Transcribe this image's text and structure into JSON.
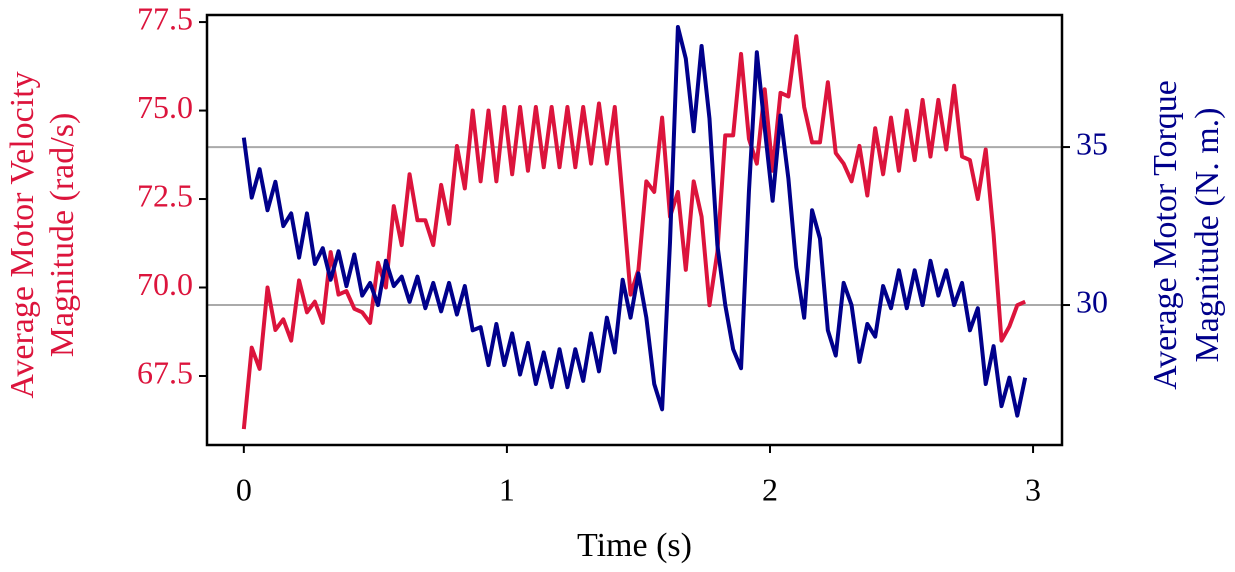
{
  "chart_data": {
    "type": "line",
    "xlabel": "Time (s)",
    "ylabel": [
      "Average Motor Velocity",
      "Magnitude (rad/s)"
    ],
    "y2label": [
      "Average Motor Torque",
      "Magnitude (N. m.)"
    ],
    "x": [
      0,
      0.03,
      0.06,
      0.09,
      0.12,
      0.15,
      0.18,
      0.21,
      0.24,
      0.27,
      0.3,
      0.33,
      0.36,
      0.39,
      0.42,
      0.45,
      0.48,
      0.51,
      0.54,
      0.57,
      0.6,
      0.63,
      0.66,
      0.69,
      0.72,
      0.75,
      0.78,
      0.81,
      0.84,
      0.87,
      0.9,
      0.93,
      0.96,
      0.99,
      1.02,
      1.05,
      1.08,
      1.11,
      1.14,
      1.17,
      1.2,
      1.23,
      1.26,
      1.29,
      1.32,
      1.35,
      1.38,
      1.41,
      1.44,
      1.47,
      1.5,
      1.53,
      1.56,
      1.59,
      1.62,
      1.65,
      1.68,
      1.71,
      1.74,
      1.77,
      1.8,
      1.83,
      1.86,
      1.89,
      1.92,
      1.95,
      1.98,
      2.01,
      2.04,
      2.07,
      2.1,
      2.13,
      2.16,
      2.19,
      2.22,
      2.25,
      2.28,
      2.31,
      2.34,
      2.37,
      2.4,
      2.43,
      2.46,
      2.49,
      2.52,
      2.55,
      2.58,
      2.61,
      2.64,
      2.67,
      2.7,
      2.73,
      2.76,
      2.79,
      2.82,
      2.85,
      2.88,
      2.91,
      2.94,
      2.97
    ],
    "series": [
      {
        "name": "Average Motor Velocity Magnitude",
        "color": "#dc143c",
        "axis": "y",
        "values": [
          66.0,
          68.3,
          67.7,
          70.0,
          68.8,
          69.1,
          68.5,
          70.2,
          69.3,
          69.6,
          69.0,
          71.0,
          69.8,
          69.9,
          69.4,
          69.3,
          69.0,
          70.7,
          70.0,
          72.3,
          71.2,
          73.2,
          71.9,
          71.9,
          71.2,
          72.9,
          71.8,
          74.0,
          72.8,
          75.0,
          73.0,
          75.0,
          73.0,
          75.1,
          73.2,
          75.1,
          73.3,
          75.1,
          73.4,
          75.1,
          73.4,
          75.1,
          73.4,
          75.1,
          73.5,
          75.2,
          73.5,
          75.1,
          72.5,
          69.8,
          70.5,
          73.0,
          72.7,
          74.8,
          72.0,
          72.7,
          70.5,
          73.0,
          72.0,
          69.5,
          71.0,
          74.3,
          74.3,
          76.6,
          74.2,
          73.5,
          75.6,
          73.3,
          75.5,
          75.4,
          77.1,
          75.1,
          74.1,
          74.1,
          75.8,
          73.8,
          73.5,
          73.0,
          74.0,
          72.6,
          74.5,
          73.2,
          74.8,
          73.3,
          75.0,
          73.6,
          75.3,
          73.7,
          75.3,
          73.9,
          75.7,
          73.7,
          73.6,
          72.5,
          73.9,
          71.5,
          68.5,
          68.9,
          69.5,
          69.6
        ]
      },
      {
        "name": "Average Motor Torque Magnitude",
        "color": "#00008b",
        "axis": "y2",
        "values": [
          35.3,
          33.4,
          34.3,
          33.0,
          33.9,
          32.5,
          32.9,
          31.5,
          32.9,
          31.3,
          31.8,
          30.8,
          31.7,
          30.6,
          31.6,
          30.3,
          30.7,
          30.0,
          31.4,
          30.6,
          30.9,
          30.1,
          30.9,
          29.9,
          30.7,
          29.8,
          30.7,
          29.7,
          30.6,
          29.2,
          29.3,
          28.1,
          29.4,
          28.1,
          29.1,
          27.8,
          28.8,
          27.5,
          28.5,
          27.4,
          28.6,
          27.4,
          28.6,
          27.6,
          29.1,
          27.9,
          29.6,
          28.5,
          30.8,
          29.6,
          31.0,
          29.6,
          27.5,
          26.7,
          32.0,
          38.8,
          37.8,
          35.5,
          38.2,
          35.9,
          31.9,
          30.0,
          28.6,
          28.0,
          33.6,
          38.0,
          35.6,
          33.3,
          36.0,
          34.0,
          31.2,
          29.6,
          33.0,
          32.1,
          29.2,
          28.4,
          30.7,
          30.0,
          28.2,
          29.4,
          29.0,
          30.6,
          29.9,
          31.1,
          29.9,
          31.1,
          30.0,
          31.4,
          30.3,
          31.1,
          30.0,
          30.7,
          29.2,
          29.9,
          27.5,
          28.7,
          26.8,
          27.7,
          26.5,
          27.7
        ]
      }
    ],
    "xlim": [
      -0.14,
      3.11
    ],
    "xticks": [
      0,
      1,
      2,
      3
    ],
    "ylim": [
      65.55,
      77.7
    ],
    "yticks": [
      67.5,
      {
        "value": 70,
        "label": "70.0"
      },
      72.5,
      {
        "value": 75,
        "label": "75.0"
      },
      77.5
    ],
    "y2lim": [
      25.57,
      39.18
    ],
    "y2ticks": [
      30,
      35
    ],
    "grid": "y2"
  }
}
